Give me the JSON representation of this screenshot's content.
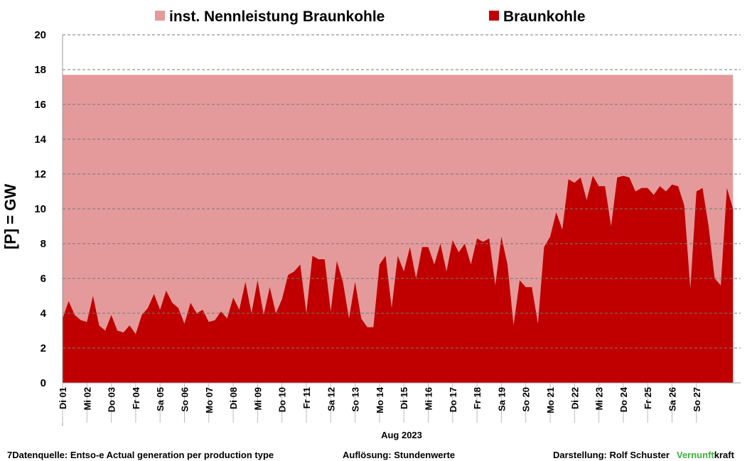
{
  "chart_data": {
    "type": "area",
    "ylabel": "[P]  = GW",
    "xlabel": "Aug 2023",
    "categories": [
      "Di 01",
      null,
      null,
      null,
      "Mi 02",
      null,
      null,
      null,
      "Do 03",
      null,
      null,
      null,
      "Fr 04",
      null,
      null,
      null,
      "Sa 05",
      null,
      null,
      null,
      "So 06",
      null,
      null,
      null,
      "Mo 07",
      null,
      null,
      null,
      "Di 08",
      null,
      null,
      null,
      "Mi 09",
      null,
      null,
      null,
      "Do 10",
      null,
      null,
      null,
      "Fr 11",
      null,
      null,
      null,
      "Sa 12",
      null,
      null,
      null,
      "So 13",
      null,
      null,
      null,
      "Mo 14",
      null,
      null,
      null,
      "Di 15",
      null,
      null,
      null,
      "Mi 16",
      null,
      null,
      null,
      "Do 17",
      null,
      null,
      null,
      "Fr 18",
      null,
      null,
      null,
      "Sa 19",
      null,
      null,
      null,
      "So 20",
      null,
      null,
      null,
      "Mo 21",
      null,
      null,
      null,
      "Di 22",
      null,
      null,
      null,
      "Mi 23",
      null,
      null,
      null,
      "Do 24",
      null,
      null,
      null,
      "Fr 25",
      null,
      null,
      null,
      "Sa 26",
      null,
      null,
      null,
      "So 27",
      null,
      null,
      null,
      null,
      null,
      null
    ],
    "series": [
      {
        "name": "inst. Nennleistung Braunkohle",
        "color": "#e49a9a",
        "values": [
          17.7,
          17.7,
          17.7,
          17.7,
          17.7,
          17.7,
          17.7,
          17.7,
          17.7,
          17.7,
          17.7,
          17.7,
          17.7,
          17.7,
          17.7,
          17.7,
          17.7,
          17.7,
          17.7,
          17.7,
          17.7,
          17.7,
          17.7,
          17.7,
          17.7,
          17.7,
          17.7,
          17.7,
          17.7,
          17.7,
          17.7,
          17.7,
          17.7,
          17.7,
          17.7,
          17.7,
          17.7,
          17.7,
          17.7,
          17.7,
          17.7,
          17.7,
          17.7,
          17.7,
          17.7,
          17.7,
          17.7,
          17.7,
          17.7,
          17.7,
          17.7,
          17.7,
          17.7,
          17.7,
          17.7,
          17.7,
          17.7,
          17.7,
          17.7,
          17.7,
          17.7,
          17.7,
          17.7,
          17.7,
          17.7,
          17.7,
          17.7,
          17.7,
          17.7,
          17.7,
          17.7,
          17.7,
          17.7,
          17.7,
          17.7,
          17.7,
          17.7,
          17.7,
          17.7,
          17.7,
          17.7,
          17.7,
          17.7,
          17.7,
          17.7,
          17.7,
          17.7,
          17.7,
          17.7,
          17.7,
          17.7,
          17.7,
          17.7,
          17.7,
          17.7,
          17.7,
          17.7,
          17.7,
          17.7,
          17.7,
          17.7,
          17.7,
          17.7,
          17.7,
          17.7,
          17.7,
          17.7,
          17.7,
          17.7,
          17.7,
          17.7
        ]
      },
      {
        "name": "Braunkohle",
        "color": "#c00000",
        "values": [
          3.7,
          4.7,
          3.9,
          3.6,
          3.5,
          5.0,
          3.3,
          3.0,
          3.9,
          3.0,
          2.9,
          3.3,
          2.8,
          3.9,
          4.3,
          5.1,
          4.2,
          5.3,
          4.6,
          4.3,
          3.4,
          4.6,
          4.0,
          4.2,
          3.5,
          3.6,
          4.1,
          3.7,
          4.9,
          4.2,
          5.8,
          4.0,
          5.9,
          3.9,
          5.5,
          4.0,
          4.8,
          6.2,
          6.4,
          6.8,
          4.0,
          7.3,
          7.1,
          7.1,
          4.1,
          7.0,
          5.8,
          3.7,
          5.8,
          3.7,
          3.2,
          3.2,
          6.8,
          7.3,
          4.3,
          7.3,
          6.4,
          7.8,
          6.0,
          7.8,
          7.8,
          6.8,
          8.0,
          6.4,
          8.2,
          7.5,
          8.0,
          6.8,
          8.3,
          8.1,
          8.3,
          5.6,
          8.4,
          6.8,
          3.3,
          5.9,
          5.5,
          5.5,
          3.4,
          7.8,
          8.4,
          9.8,
          8.8,
          11.7,
          11.5,
          11.8,
          10.5,
          11.9,
          11.3,
          11.3,
          9.0,
          11.8,
          11.9,
          11.8,
          11.0,
          11.2,
          11.2,
          10.8,
          11.3,
          11.0,
          11.4,
          11.3,
          10.2,
          5.4,
          11.0,
          11.2,
          9.0,
          6.0,
          5.6,
          11.2,
          10.0
        ]
      }
    ],
    "ylim": [
      0,
      20
    ],
    "yticks": [
      0,
      2,
      4,
      6,
      8,
      10,
      12,
      14,
      16,
      18,
      20
    ],
    "grid": true,
    "legend": "top"
  },
  "footer": {
    "source": "7Datenquelle: Entso-e  Actual generation per production type",
    "resolution": "Auflösung: Stundenwerte",
    "author": "Darstellung:  Rolf Schuster",
    "brand_green": "Vernunft",
    "brand_rest": "kraft"
  }
}
